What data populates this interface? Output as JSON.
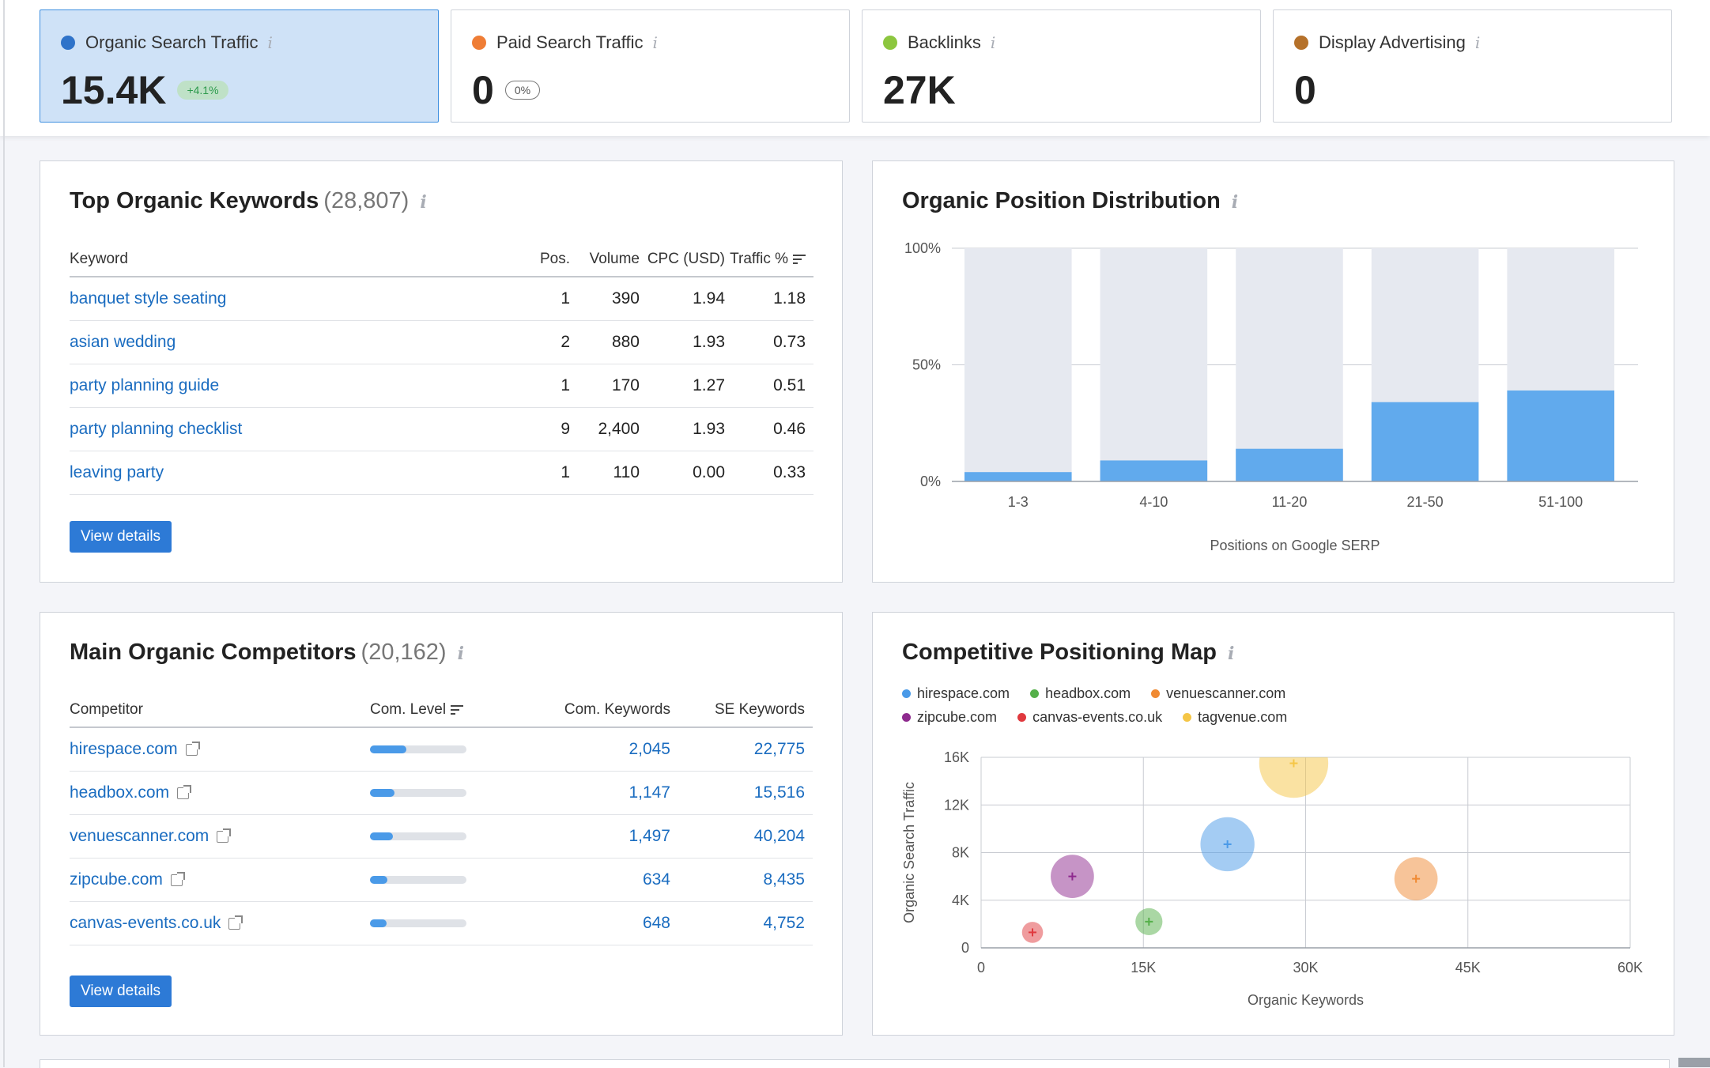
{
  "metrics": [
    {
      "label": "Organic Search Traffic",
      "value": "15.4K",
      "badge": "+4.1%",
      "color": "#2f73c9"
    },
    {
      "label": "Paid Search Traffic",
      "value": "0",
      "badge": "0%",
      "color": "#ef7d35"
    },
    {
      "label": "Backlinks",
      "value": "27K",
      "color": "#8cc63f"
    },
    {
      "label": "Display Advertising",
      "value": "0",
      "color": "#b5712a"
    }
  ],
  "top_keywords": {
    "title": "Top Organic Keywords",
    "count": "(28,807)",
    "columns": [
      "Keyword",
      "Pos.",
      "Volume",
      "CPC (USD)",
      "Traffic %"
    ],
    "rows": [
      [
        "banquet style seating",
        "1",
        "390",
        "1.94",
        "1.18"
      ],
      [
        "asian wedding",
        "2",
        "880",
        "1.93",
        "0.73"
      ],
      [
        "party planning guide",
        "1",
        "170",
        "1.27",
        "0.51"
      ],
      [
        "party planning checklist",
        "9",
        "2,400",
        "1.93",
        "0.46"
      ],
      [
        "leaving party",
        "1",
        "110",
        "0.00",
        "0.33"
      ]
    ],
    "button": "View details"
  },
  "competitors": {
    "title": "Main Organic Competitors",
    "count": "(20,162)",
    "columns": [
      "Competitor",
      "Com. Level",
      "Com. Keywords",
      "SE Keywords"
    ],
    "rows": [
      {
        "domain": "hirespace.com",
        "level": 0.38,
        "com_kw": "2,045",
        "se_kw": "22,775"
      },
      {
        "domain": "headbox.com",
        "level": 0.25,
        "com_kw": "1,147",
        "se_kw": "15,516"
      },
      {
        "domain": "venuescanner.com",
        "level": 0.24,
        "com_kw": "1,497",
        "se_kw": "40,204"
      },
      {
        "domain": "zipcube.com",
        "level": 0.18,
        "com_kw": "634",
        "se_kw": "8,435"
      },
      {
        "domain": "canvas-events.co.uk",
        "level": 0.17,
        "com_kw": "648",
        "se_kw": "4,752"
      }
    ],
    "button": "View details"
  },
  "position_distribution": {
    "title": "Organic Position Distribution"
  },
  "positioning_map": {
    "title": "Competitive Positioning Map"
  },
  "chart_data": [
    {
      "type": "bar",
      "title": "Organic Position Distribution",
      "xlabel": "Positions on Google SERP",
      "ylabel": "",
      "categories": [
        "1-3",
        "4-10",
        "11-20",
        "21-50",
        "51-100"
      ],
      "values": [
        4,
        9,
        14,
        34,
        39
      ],
      "ylim": [
        0,
        100
      ],
      "yticks": [
        "0%",
        "50%",
        "100%"
      ],
      "colors": {
        "bar": "#61aaed",
        "background": "#e6e9f0"
      }
    },
    {
      "type": "scatter",
      "title": "Competitive Positioning Map",
      "xlabel": "Organic Keywords",
      "ylabel": "Organic Search Traffic",
      "xlim": [
        0,
        60000
      ],
      "ylim": [
        0,
        16000
      ],
      "xticks": [
        "0",
        "15K",
        "30K",
        "45K",
        "60K"
      ],
      "yticks": [
        "0",
        "4K",
        "8K",
        "12K",
        "16K"
      ],
      "grid": true,
      "legend_position": "top-left",
      "series": [
        {
          "name": "hirespace.com",
          "x": 22775,
          "y": 8700,
          "size": 0.9,
          "color": "#4a9ae8"
        },
        {
          "name": "headbox.com",
          "x": 15516,
          "y": 2200,
          "size": 0.45,
          "color": "#55b04a"
        },
        {
          "name": "venuescanner.com",
          "x": 40204,
          "y": 5800,
          "size": 0.72,
          "color": "#f08a33"
        },
        {
          "name": "zipcube.com",
          "x": 8435,
          "y": 6000,
          "size": 0.72,
          "color": "#8e2a8e"
        },
        {
          "name": "canvas-events.co.uk",
          "x": 4752,
          "y": 1300,
          "size": 0.35,
          "color": "#e0393e"
        },
        {
          "name": "tagvenue.com",
          "x": 28900,
          "y": 15500,
          "size": 1.15,
          "color": "#f5c646"
        }
      ]
    }
  ]
}
